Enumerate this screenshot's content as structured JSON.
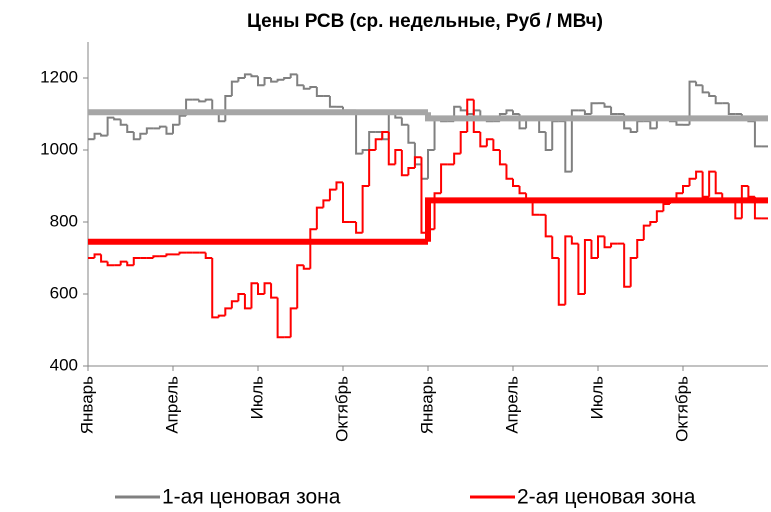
{
  "chart_data": {
    "type": "step-line",
    "title": "Цены РСВ (ср. недельные, Руб / МВч)",
    "xlim": [
      0,
      104
    ],
    "xticks": [
      {
        "value": 0,
        "label": "Январь"
      },
      {
        "value": 13,
        "label": "Апрель"
      },
      {
        "value": 26,
        "label": "Июль"
      },
      {
        "value": 39,
        "label": "Октябрь"
      },
      {
        "value": 52,
        "label": "Январь"
      },
      {
        "value": 65,
        "label": "Апрель"
      },
      {
        "value": 78,
        "label": "Июль"
      },
      {
        "value": 91,
        "label": "Октябрь"
      }
    ],
    "ylim": [
      400,
      1300
    ],
    "yticks": [
      400,
      600,
      800,
      1000,
      1200
    ],
    "grid": false,
    "legend": "bottom",
    "series": [
      {
        "name": "1-ая ценовая зона",
        "color": "#808080",
        "mean_color": "#a6a6a6",
        "values": [
          1030,
          1045,
          1040,
          1090,
          1085,
          1070,
          1050,
          1030,
          1045,
          1060,
          1060,
          1065,
          1045,
          1070,
          1095,
          1140,
          1140,
          1135,
          1140,
          1100,
          1080,
          1150,
          1190,
          1200,
          1210,
          1205,
          1180,
          1200,
          1190,
          1195,
          1200,
          1210,
          1180,
          1170,
          1175,
          1150,
          1150,
          1120,
          1120,
          1110,
          1110,
          990,
          1000,
          1050,
          1050,
          1030,
          1100,
          1090,
          1070,
          1020,
          960,
          920,
          1000,
          1090,
          1080,
          1080,
          1120,
          1110,
          1100,
          1110,
          1090,
          1080,
          1080,
          1100,
          1110,
          1100,
          1060,
          1090,
          1090,
          1050,
          1000,
          1080,
          1080,
          940,
          1110,
          1110,
          1100,
          1130,
          1130,
          1120,
          1100,
          1100,
          1060,
          1050,
          1080,
          1080,
          1060,
          1090,
          1090,
          1080,
          1070,
          1070,
          1190,
          1180,
          1160,
          1150,
          1130,
          1130,
          1100,
          1100,
          1090,
          1080,
          1010,
          1010
        ],
        "means": [
          {
            "x": [
              0,
              52
            ],
            "value": 1105
          },
          {
            "x": [
              52,
              104
            ],
            "value": 1088
          }
        ]
      },
      {
        "name": "2-ая ценовая зона",
        "color": "#ff0000",
        "mean_color": "#ff0000",
        "values": [
          700,
          710,
          690,
          680,
          680,
          690,
          680,
          700,
          700,
          700,
          705,
          705,
          710,
          710,
          715,
          715,
          715,
          715,
          700,
          535,
          540,
          560,
          580,
          600,
          560,
          630,
          600,
          630,
          590,
          480,
          480,
          560,
          680,
          670,
          780,
          840,
          860,
          890,
          910,
          800,
          800,
          770,
          900,
          1000,
          1030,
          1050,
          960,
          1000,
          930,
          950,
          980,
          770,
          780,
          880,
          960,
          960,
          990,
          1050,
          1140,
          1050,
          1010,
          1030,
          1000,
          960,
          920,
          900,
          880,
          860,
          820,
          820,
          760,
          700,
          570,
          760,
          740,
          600,
          750,
          700,
          760,
          730,
          740,
          740,
          620,
          700,
          750,
          790,
          800,
          830,
          850,
          860,
          880,
          900,
          920,
          940,
          870,
          940,
          880,
          860,
          860,
          810,
          900,
          870,
          810,
          810
        ],
        "means": [
          {
            "x": [
              0,
              52
            ],
            "value": 745
          },
          {
            "x": [
              52,
              104
            ],
            "value": 860
          }
        ]
      }
    ]
  }
}
